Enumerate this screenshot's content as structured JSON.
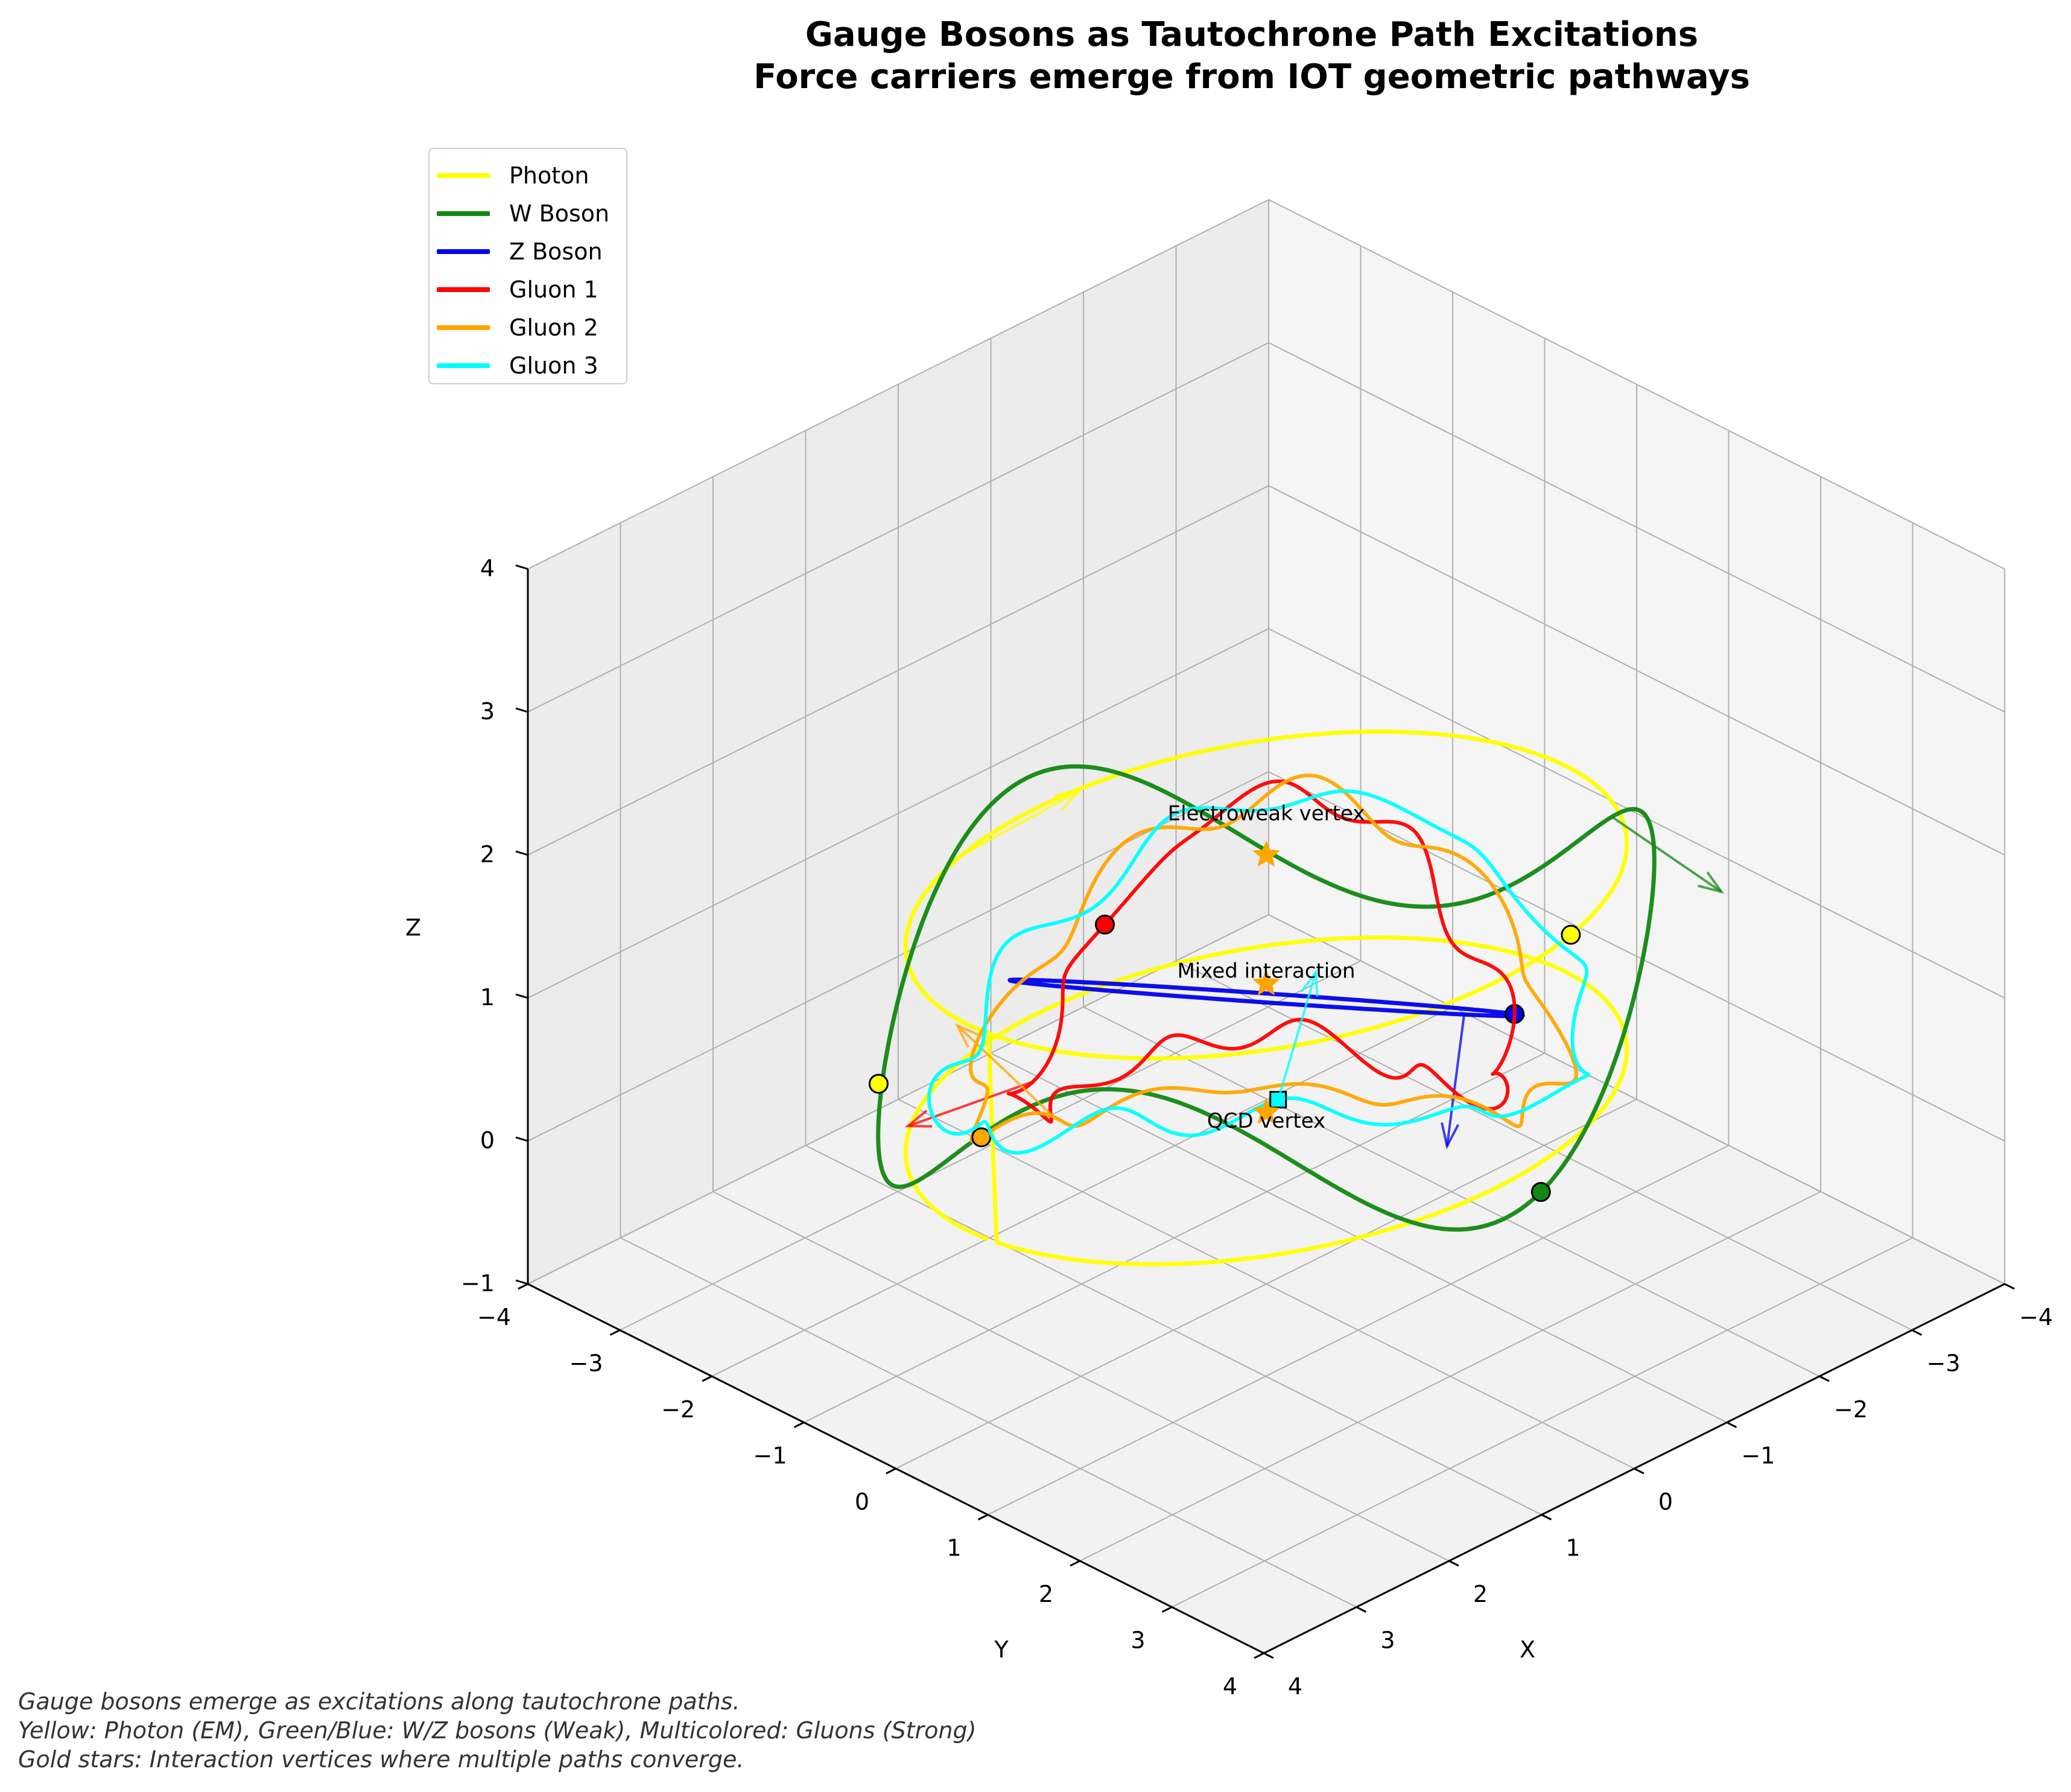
{
  "title_line1": "Gauge Bosons as Tautochrone Path Excitations",
  "title_line2": "Force carriers emerge from IOT geometric pathways",
  "caption": [
    "Gauge bosons emerge as excitations along tautochrone paths.",
    "Yellow: Photon (EM), Green/Blue: W/Z bosons (Weak), Multicolored: Gluons (Strong)",
    "Gold stars: Interaction vertices where multiple paths converge."
  ],
  "chart_data": {
    "type": "line",
    "projection": "3d",
    "view": {
      "elevation_deg": 30,
      "azimuth_deg": 45
    },
    "xlabel": "X",
    "ylabel": "Y",
    "zlabel": "Z",
    "xlim": [
      -4,
      4
    ],
    "ylim": [
      -4,
      4
    ],
    "zlim": [
      -1,
      4
    ],
    "xticks": [
      "−4",
      "−3",
      "−2",
      "−1",
      "0",
      "1",
      "2",
      "3",
      "4"
    ],
    "yticks": [
      "−4",
      "−3",
      "−2",
      "−1",
      "0",
      "1",
      "2",
      "3",
      "4"
    ],
    "zticks": [
      "−1",
      "0",
      "1",
      "2",
      "3",
      "4"
    ],
    "grid": true,
    "legend_position": "top-left",
    "series": [
      {
        "name": "Photon",
        "color": "#ffff00",
        "shape": "ellipse-pair",
        "center": [
          0,
          0,
          1
        ],
        "a": 3.0,
        "b": 2.5,
        "zamp": 0.8,
        "marker": "circle",
        "start_marker": [
          2.1,
          -2.1,
          0.4
        ],
        "end_marker": "square"
      },
      {
        "name": "W Boson",
        "color": "#118811",
        "shape": "wave-loop",
        "center": [
          0,
          0,
          1
        ],
        "a": 3.3,
        "b": 2.6,
        "zamp": 0.7,
        "marker": "circle"
      },
      {
        "name": "Z Boson",
        "color": "#0000ee",
        "shape": "tilted-loop",
        "center": [
          0,
          0,
          1
        ],
        "a": 2.5,
        "b": 2.0,
        "zamp": 1.0,
        "marker": "circle"
      },
      {
        "name": "Gluon 1",
        "color": "#ff0000",
        "shape": "wobbly-loop",
        "center": [
          0,
          0,
          1
        ],
        "a": 2.0,
        "b": 1.7,
        "zamp": 0.6,
        "marker": "circle"
      },
      {
        "name": "Gluon 2",
        "color": "#ffa500",
        "shape": "wobbly-loop",
        "center": [
          0,
          0,
          0.9
        ],
        "a": 2.4,
        "b": 2.1,
        "zamp": 0.5,
        "marker": "circle"
      },
      {
        "name": "Gluon 3",
        "color": "#00ffff",
        "shape": "wobbly-loop",
        "center": [
          0,
          0,
          0.9
        ],
        "a": 2.7,
        "b": 2.2,
        "zamp": 0.4,
        "marker": "square"
      }
    ],
    "annotations": [
      {
        "text": "Electroweak vertex",
        "x": 0,
        "y": 0,
        "z": 2.2
      },
      {
        "text": "Mixed interaction",
        "x": 0,
        "y": 0,
        "z": 1.1
      },
      {
        "text": "QCD vertex",
        "x": 0,
        "y": 0,
        "z": 0.05
      }
    ],
    "stars": [
      {
        "x": 0,
        "y": 0,
        "z": 2.0,
        "color": "#ffa500"
      },
      {
        "x": 0,
        "y": 0,
        "z": 1.1,
        "color": "#ffa500"
      },
      {
        "x": 0,
        "y": 0,
        "z": 0.2,
        "color": "#ffa500"
      }
    ]
  }
}
